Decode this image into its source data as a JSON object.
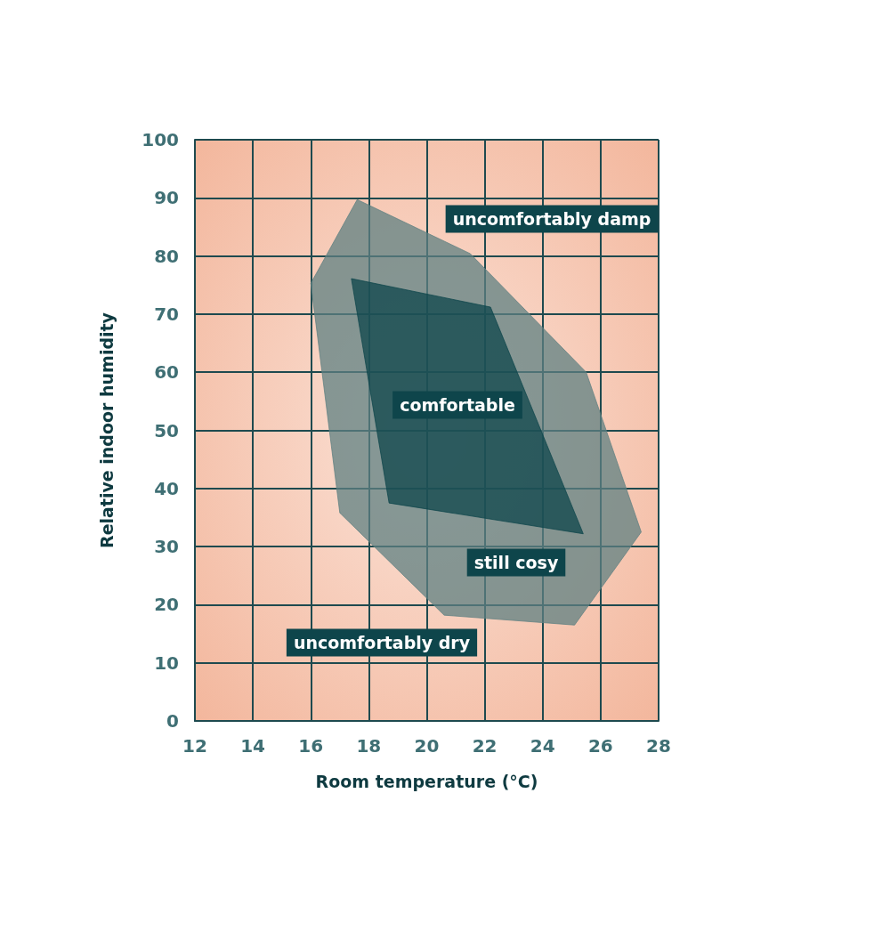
{
  "chart_data": {
    "type": "area",
    "xlabel": "Room temperature (°C)",
    "ylabel": "Relative indoor humidity",
    "xlim": [
      12,
      28
    ],
    "xticks": [
      12,
      14,
      16,
      18,
      20,
      22,
      24,
      26,
      28
    ],
    "ylim": [
      0,
      100
    ],
    "yticks": [
      0,
      10,
      20,
      30,
      40,
      50,
      60,
      70,
      80,
      90,
      100
    ],
    "grid": true,
    "series": [
      {
        "color": "#5f8082",
        "x": [
          17.6,
          21.5,
          25.5,
          27.4,
          25.1,
          20.6,
          17.0,
          16.0
        ],
        "values": [
          89.7,
          80.4,
          60.0,
          32.5,
          16.5,
          18.2,
          35.8,
          75.3
        ]
      },
      {
        "color": "#0e454b",
        "x": [
          17.4,
          22.2,
          25.4,
          18.7
        ],
        "values": [
          76.1,
          71.2,
          32.2,
          37.5
        ]
      }
    ],
    "annotations": [
      "uncomfortably damp",
      "comfortable",
      "still cosy",
      "uncomfortably dry"
    ]
  }
}
